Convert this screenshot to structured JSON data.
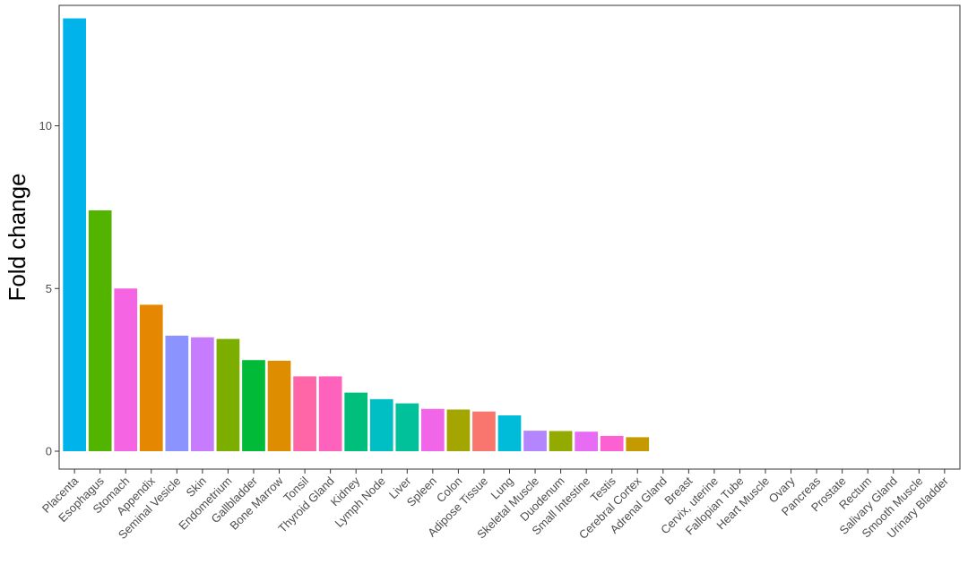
{
  "chart_data": {
    "type": "bar",
    "ylabel": "Fold change",
    "xlabel": "",
    "ylim": [
      0,
      13.7
    ],
    "yticks": [
      0,
      5,
      10
    ],
    "legend": "none",
    "grid": false,
    "categories": [
      "Placenta",
      "Esophagus",
      "Stomach",
      "Appendix",
      "Seminal Vesicle",
      "Skin",
      "Endometrium",
      "Gallbladder",
      "Bone Marrow",
      "Tonsil",
      "Thyroid Gland",
      "Kidney",
      "Lymph Node",
      "Liver",
      "Spleen",
      "Colon",
      "Adipose Tissue",
      "Lung",
      "Skeletal Muscle",
      "Duodenum",
      "Small Intestine",
      "Testis",
      "Cerebral Cortex",
      "Adrenal Gland",
      "Breast",
      "Cervix, uterine",
      "Fallopian Tube",
      "Heart Muscle",
      "Ovary",
      "Pancreas",
      "Prostate",
      "Rectum",
      "Salivary Gland",
      "Smooth Muscle",
      "Urinary Bladder"
    ],
    "values": [
      13.3,
      7.4,
      5.0,
      4.5,
      3.55,
      3.5,
      3.45,
      2.8,
      2.78,
      2.3,
      2.3,
      1.8,
      1.6,
      1.47,
      1.3,
      1.28,
      1.22,
      1.1,
      0.63,
      0.62,
      0.6,
      0.47,
      0.43,
      0,
      0,
      0,
      0,
      0,
      0,
      0,
      0,
      0,
      0,
      0,
      0
    ],
    "colors": [
      "#00B4EB",
      "#53B400",
      "#F564E3",
      "#E58700",
      "#8B93FF",
      "#C77CFF",
      "#7CAE00",
      "#00BA38",
      "#DE8C00",
      "#FF66A8",
      "#FF62BC",
      "#00BF7D",
      "#00BFC4",
      "#00C19A",
      "#F166E8",
      "#A3A500",
      "#F8766D",
      "#00BCD8",
      "#B385FF",
      "#93AA00",
      "#E76BF3",
      "#FD61D1",
      "#C49A00",
      "#619CFF",
      "#00C0B8",
      "#6BB100",
      "#A58AFF",
      "#D89000",
      "#FF6C90",
      "#39B600",
      "#00ACFC",
      "#FF61C3",
      "#00B0F6",
      "#B79F00",
      "#EF7F49"
    ]
  }
}
